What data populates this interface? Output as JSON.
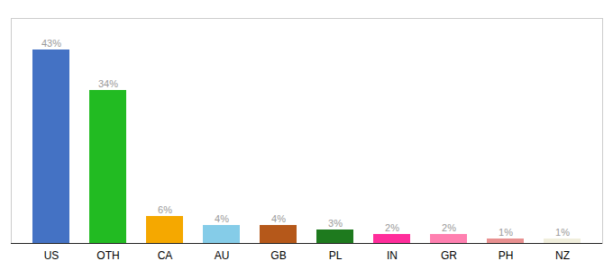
{
  "chart_data": {
    "type": "bar",
    "categories": [
      "US",
      "OTH",
      "CA",
      "AU",
      "GB",
      "PL",
      "IN",
      "GR",
      "PH",
      "NZ"
    ],
    "values": [
      43,
      34,
      6,
      4,
      4,
      3,
      2,
      2,
      1,
      1
    ],
    "value_labels": [
      "43%",
      "34%",
      "6%",
      "4%",
      "4%",
      "3%",
      "2%",
      "2%",
      "1%",
      "1%"
    ],
    "colors": [
      "#4472c4",
      "#22bb22",
      "#f5a800",
      "#85cce8",
      "#b5581a",
      "#1e7a1e",
      "#ff2d9b",
      "#ff80b0",
      "#e89090",
      "#f0eedc"
    ],
    "ylim": [
      0,
      50
    ],
    "data_labels": true,
    "tick_labels": "x"
  }
}
